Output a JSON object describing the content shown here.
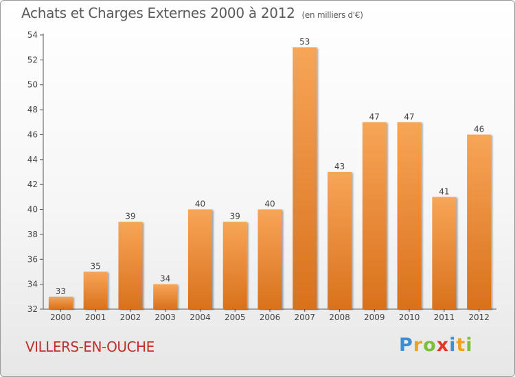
{
  "page": {
    "title": "Achats et Charges Externes 2000 à 2012",
    "unit": "(en milliers d'€)",
    "commune": "VILLERS-EN-OUCHE",
    "logo_letters": [
      {
        "ch": "P",
        "color": "#3b8fd4"
      },
      {
        "ch": "r",
        "color": "#f0a020"
      },
      {
        "ch": "o",
        "color": "#7bbf3a"
      },
      {
        "ch": "x",
        "color": "#e0362c"
      },
      {
        "ch": "i",
        "color": "#3b8fd4"
      },
      {
        "ch": "t",
        "color": "#f0a020"
      },
      {
        "ch": "i",
        "color": "#7bbf3a"
      }
    ]
  },
  "chart_data": {
    "type": "bar",
    "title": "Achats et Charges Externes 2000 à 2012",
    "subtitle": "(en milliers d'€)",
    "xlabel": "",
    "ylabel": "",
    "categories": [
      "2000",
      "2001",
      "2002",
      "2003",
      "2004",
      "2005",
      "2006",
      "2007",
      "2008",
      "2009",
      "2010",
      "2011",
      "2012"
    ],
    "values": [
      33,
      35,
      39,
      34,
      40,
      39,
      40,
      53,
      43,
      47,
      47,
      41,
      46
    ],
    "ylim": [
      32,
      54
    ],
    "yticks": [
      32,
      34,
      36,
      38,
      40,
      42,
      44,
      46,
      48,
      50,
      52,
      54
    ],
    "grid": false,
    "legend": "none",
    "bar_color": "#f0923a"
  }
}
